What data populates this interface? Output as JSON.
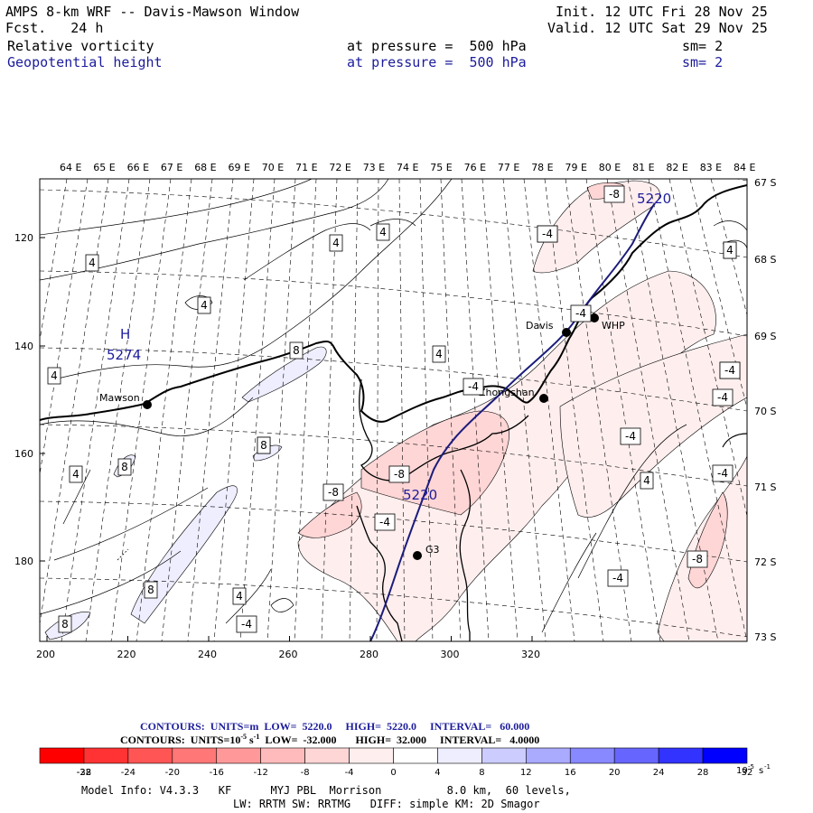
{
  "header": {
    "title": "AMPS 8-km WRF -- Davis-Mawson Window",
    "init_label": "Init.",
    "init_value": "12 UTC Fri 28 Nov 25",
    "fcst_label": "Fcst.",
    "fcst_value": "24 h",
    "valid_label": "Valid.",
    "valid_value": "12 UTC Sat 29 Nov 25",
    "field1_name": "Relative vorticity",
    "field1_level": "at pressure =  500 hPa",
    "field1_sm": "sm= 2",
    "field2_name": "Geopotential height",
    "field2_level": "at pressure =  500 hPa",
    "field2_sm": "sm= 2"
  },
  "map": {
    "lon_labels": [
      "64 E",
      "65 E",
      "66 E",
      "67 E",
      "68 E",
      "69 E",
      "70 E",
      "71 E",
      "72 E",
      "73 E",
      "74 E",
      "75 E",
      "76 E",
      "77 E",
      "78 E",
      "79 E",
      "80 E",
      "81 E",
      "82 E",
      "83 E",
      "84 E"
    ],
    "lat_labels": [
      "67 S",
      "68 S",
      "69 S",
      "70 S",
      "71 S",
      "72 S",
      "73 S"
    ],
    "x_ticks": [
      "200",
      "220",
      "240",
      "260",
      "280",
      "300",
      "320"
    ],
    "y_ticks": [
      "120",
      "140",
      "160",
      "180"
    ],
    "stations": [
      {
        "name": "Mawson"
      },
      {
        "name": "Davis"
      },
      {
        "name": "WHP"
      },
      {
        "name": "Zhongshan"
      },
      {
        "name": "G3"
      }
    ],
    "high_letter": "H",
    "high_value": "5274",
    "height_label_1": "5220",
    "height_label_2": "5220",
    "vort_labels": [
      "4",
      "4",
      "4",
      "4",
      "4",
      "4",
      "4",
      "4",
      "4",
      "4",
      "4",
      "8",
      "8",
      "8",
      "8",
      "8",
      "-8",
      "-8",
      "-8",
      "-8",
      "-8",
      "-4",
      "-4",
      "-4",
      "-4",
      "-4",
      "-4",
      "-4",
      "-4",
      "-4",
      "-4",
      "-4",
      "4"
    ]
  },
  "contours_line1": {
    "label": "CONTOURS:",
    "units": "UNITS=m",
    "low": "LOW=  5220.0",
    "high": "HIGH=  5220.0",
    "interval": "INTERVAL=   60.000"
  },
  "contours_line2": {
    "label": "CONTOURS:",
    "units": "UNITS=10",
    "units_exp": "-5",
    "units_tail": "s",
    "units_tail_exp": "-1",
    "low": "LOW=  -32.000",
    "high": "HIGH=  32.000",
    "interval": "INTERVAL=   4.0000"
  },
  "colorbar": {
    "ticks": [
      "-32",
      "-28",
      "-24",
      "-20",
      "-16",
      "-12",
      "-8",
      "-4",
      "0",
      "4",
      "8",
      "12",
      "16",
      "20",
      "24",
      "28",
      "32"
    ],
    "unit": "10",
    "unit_exp": "-5",
    "unit_tail": "s",
    "unit_tail_exp": "-1",
    "colors": [
      "#ff0000",
      "#ff3333",
      "#ff5555",
      "#ff7777",
      "#ff9999",
      "#ffbbbb",
      "#ffd6d6",
      "#ffeeee",
      "#ffffff",
      "#ffffff",
      "#eeeeff",
      "#ccccff",
      "#aaaaff",
      "#8888ff",
      "#6666ff",
      "#3333ff",
      "#0000ff"
    ]
  },
  "footer": {
    "line1": "Model Info: V4.3.3   KF      MYJ PBL  Morrison          8.0 km,  60 levels,",
    "line2": "LW: RRTM SW: RRTMG   DIFF: simple KM: 2D Smagor"
  }
}
